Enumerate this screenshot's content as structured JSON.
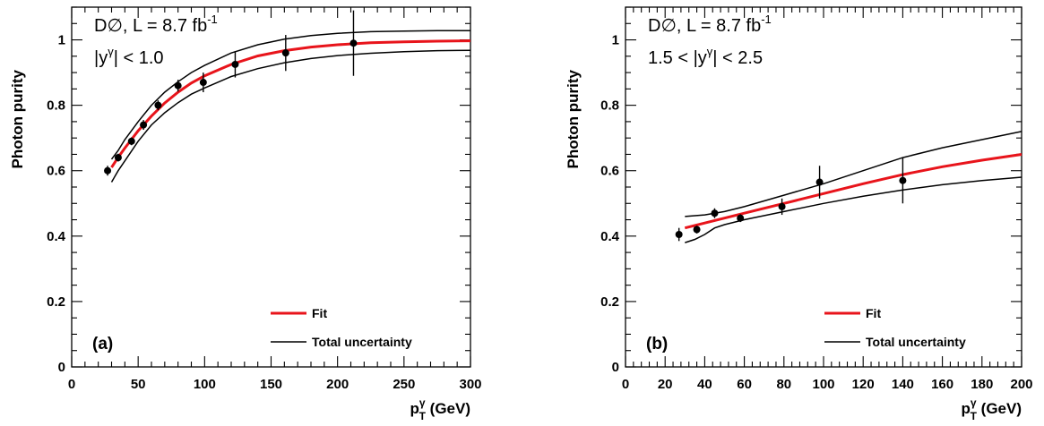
{
  "chart_data": [
    {
      "type": "scatter",
      "panel_label": "(a)",
      "annotation_line1_main": "D∅, L = 8.7 fb",
      "annotation_line1_sup": "-1",
      "annotation_line2_pre": "|y",
      "annotation_line2_sup": "γ",
      "annotation_line2_post": "| < 1.0",
      "xlabel_main": "p",
      "xlabel_sup": "γ",
      "xlabel_sub": "T",
      "xlabel_post": " (GeV)",
      "ylabel": "Photon purity",
      "xlim": [
        0,
        300
      ],
      "ylim": [
        0,
        1.1
      ],
      "xticks": [
        0,
        50,
        100,
        150,
        200,
        250,
        300
      ],
      "yticks": [
        0,
        0.2,
        0.4,
        0.6,
        0.8,
        1
      ],
      "ytick_labels": [
        "0",
        "0.2",
        "0.4",
        "0.6",
        "0.8",
        "1"
      ],
      "legend": {
        "placement": "bottom-right",
        "fit_label": "Fit",
        "unc_label": "Total uncertainty"
      },
      "colors": {
        "fit": "#e8141b",
        "uncertainty": "#000000",
        "points": "#000000"
      },
      "points": [
        {
          "x": 27,
          "y": 0.6,
          "err": 0.015
        },
        {
          "x": 35,
          "y": 0.64,
          "err": 0.012
        },
        {
          "x": 45,
          "y": 0.69,
          "err": 0.012
        },
        {
          "x": 54,
          "y": 0.74,
          "err": 0.015
        },
        {
          "x": 65,
          "y": 0.8,
          "err": 0.015
        },
        {
          "x": 80,
          "y": 0.86,
          "err": 0.018
        },
        {
          "x": 99,
          "y": 0.87,
          "err": 0.03
        },
        {
          "x": 123,
          "y": 0.925,
          "err": 0.04
        },
        {
          "x": 161,
          "y": 0.96,
          "err": 0.055
        },
        {
          "x": 212,
          "y": 0.99,
          "err": 0.1
        }
      ],
      "fit": {
        "x": [
          30,
          35,
          40,
          50,
          60,
          70,
          80,
          90,
          100,
          120,
          140,
          160,
          180,
          200,
          225,
          250,
          275,
          300
        ],
        "y": [
          0.61,
          0.641,
          0.669,
          0.722,
          0.767,
          0.807,
          0.84,
          0.868,
          0.89,
          0.925,
          0.951,
          0.967,
          0.978,
          0.985,
          0.991,
          0.994,
          0.996,
          0.997
        ]
      },
      "uncertainty_upper": {
        "x": [
          30,
          35,
          40,
          50,
          60,
          70,
          80,
          90,
          100,
          120,
          140,
          160,
          180,
          200,
          225,
          250,
          275,
          300
        ],
        "y": [
          0.635,
          0.662,
          0.695,
          0.75,
          0.8,
          0.84,
          0.872,
          0.9,
          0.922,
          0.96,
          0.985,
          1.002,
          1.013,
          1.02,
          1.025,
          1.027,
          1.028,
          1.028
        ]
      },
      "uncertainty_lower": {
        "x": [
          30,
          35,
          40,
          50,
          60,
          70,
          80,
          90,
          100,
          120,
          140,
          160,
          180,
          200,
          225,
          250,
          275,
          300
        ],
        "y": [
          0.565,
          0.6,
          0.63,
          0.69,
          0.74,
          0.777,
          0.808,
          0.834,
          0.853,
          0.888,
          0.912,
          0.93,
          0.943,
          0.952,
          0.959,
          0.964,
          0.967,
          0.968
        ]
      }
    },
    {
      "type": "scatter",
      "panel_label": "(b)",
      "annotation_line1_main": "D∅, L = 8.7 fb",
      "annotation_line1_sup": "-1",
      "annotation_line2_pre": "1.5 < |y",
      "annotation_line2_sup": "γ",
      "annotation_line2_post": "| < 2.5",
      "xlabel_main": "p",
      "xlabel_sup": "γ",
      "xlabel_sub": "T",
      "xlabel_post": " (GeV)",
      "ylabel": "Photon purity",
      "xlim": [
        0,
        200
      ],
      "ylim": [
        0,
        1.1
      ],
      "xticks": [
        0,
        20,
        40,
        60,
        80,
        100,
        120,
        140,
        160,
        180,
        200
      ],
      "yticks": [
        0,
        0.2,
        0.4,
        0.6,
        0.8,
        1
      ],
      "ytick_labels": [
        "0",
        "0.2",
        "0.4",
        "0.6",
        "0.8",
        "1"
      ],
      "legend": {
        "placement": "bottom-right",
        "fit_label": "Fit",
        "unc_label": "Total uncertainty"
      },
      "colors": {
        "fit": "#e8141b",
        "uncertainty": "#000000",
        "points": "#000000"
      },
      "points": [
        {
          "x": 27,
          "y": 0.405,
          "err": 0.02
        },
        {
          "x": 36,
          "y": 0.42,
          "err": 0.012
        },
        {
          "x": 45,
          "y": 0.47,
          "err": 0.015
        },
        {
          "x": 58,
          "y": 0.455,
          "err": 0.012
        },
        {
          "x": 79,
          "y": 0.49,
          "err": 0.025
        },
        {
          "x": 98,
          "y": 0.565,
          "err": 0.05
        },
        {
          "x": 140,
          "y": 0.57,
          "err": 0.07
        }
      ],
      "fit": {
        "x": [
          30,
          40,
          50,
          60,
          80,
          100,
          120,
          140,
          160,
          180,
          200
        ],
        "y": [
          0.425,
          0.44,
          0.455,
          0.47,
          0.5,
          0.53,
          0.56,
          0.588,
          0.612,
          0.632,
          0.65
        ]
      },
      "uncertainty_upper": {
        "x": [
          30,
          40,
          50,
          60,
          80,
          100,
          120,
          140,
          160,
          180,
          200
        ],
        "y": [
          0.46,
          0.465,
          0.475,
          0.49,
          0.525,
          0.56,
          0.6,
          0.64,
          0.67,
          0.695,
          0.72
        ]
      },
      "uncertainty_lower": {
        "x": [
          30,
          35,
          40,
          45,
          50,
          60,
          80,
          100,
          120,
          140,
          160,
          180,
          200
        ],
        "y": [
          0.38,
          0.39,
          0.405,
          0.425,
          0.435,
          0.45,
          0.475,
          0.5,
          0.522,
          0.541,
          0.557,
          0.57,
          0.58
        ]
      }
    }
  ]
}
